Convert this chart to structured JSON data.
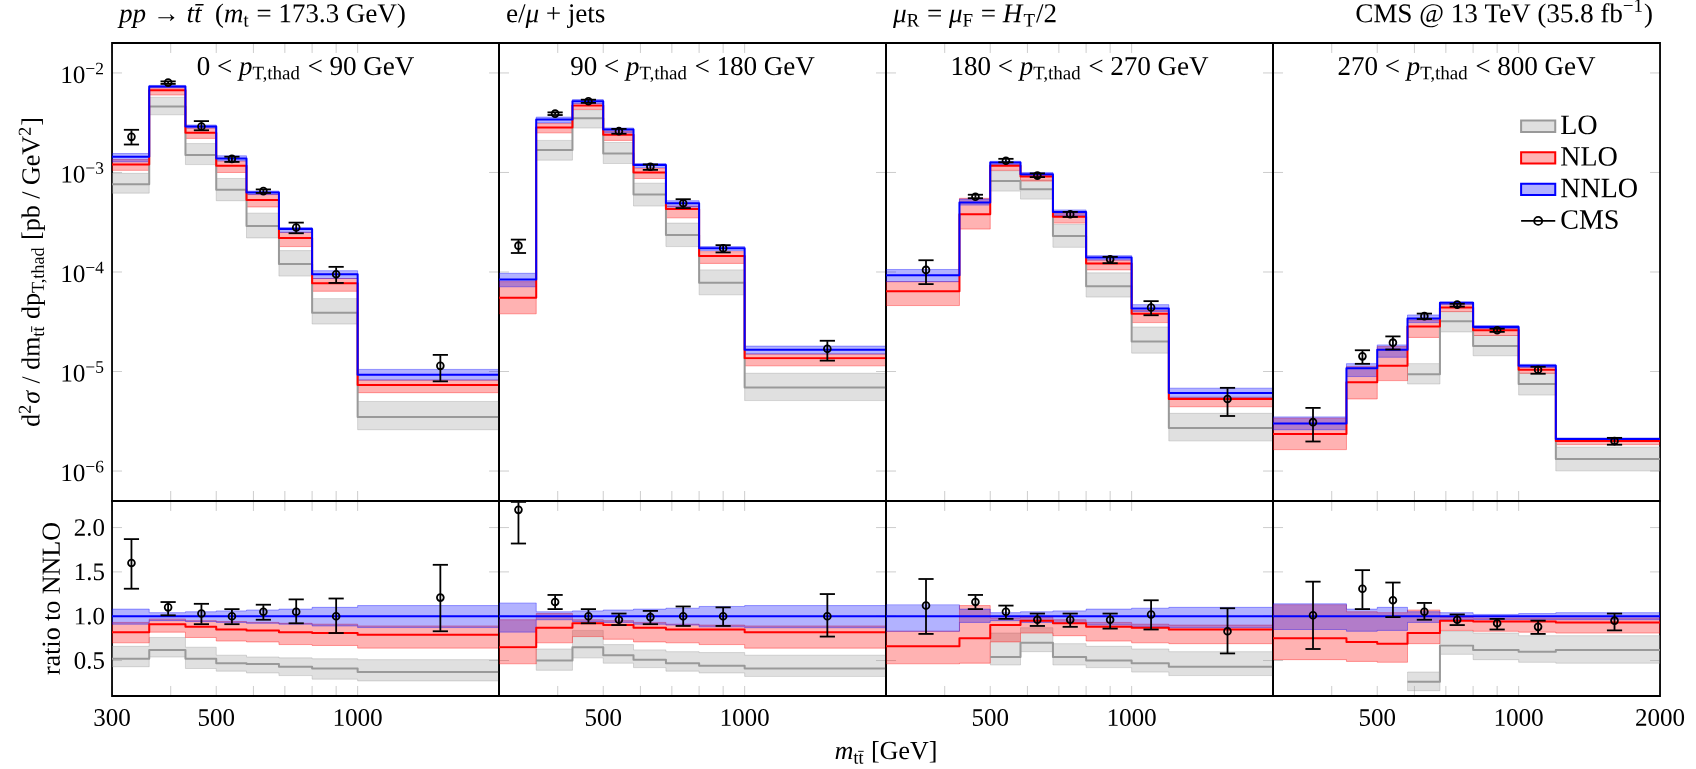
{
  "chart_data": [
    {
      "type": "step",
      "title": "*pp* → *tt̄* (*m*$_{t}$ = 173.3 GeV)",
      "annotations": [
        "0 < *p*$_{T,thad}$ < 90 GeV"
      ],
      "ylabel": "d$^{2}$*σ* / dm$_{tt̄}$ dp$_{T,thad}$  [pb / GeV$^{2}$]",
      "log": "xy",
      "x": [
        300,
        360,
        430,
        500,
        580,
        680,
        800,
        1000,
        2000
      ],
      "xlim": [
        300,
        2000
      ],
      "ylim": [
        5e-07,
        0.02
      ],
      "xticks": [
        {
          "value": 300,
          "label": null
        },
        {
          "value": 400,
          "label": null
        },
        {
          "value": 500,
          "label": null
        },
        {
          "value": 600,
          "label": null
        },
        {
          "value": 700,
          "label": null
        },
        {
          "value": 800,
          "label": null
        },
        {
          "value": 900,
          "label": null
        },
        {
          "value": 1000,
          "label": null
        }
      ],
      "yticks": [
        {
          "value": 0.01,
          "label": "10$^{−2}$"
        },
        {
          "value": 0.001,
          "label": "10$^{−3}$"
        },
        {
          "value": 0.0001,
          "label": "10$^{−4}$"
        },
        {
          "value": 1e-05,
          "label": "10$^{−5}$"
        },
        {
          "value": 1e-06,
          "label": "10$^{−6}$"
        }
      ],
      "tick_labels": "y",
      "series": [
        {
          "color": "#999999",
          "values": [
            0.00076,
            0.0046,
            0.0015,
            0.00067,
            0.00029,
            0.00012,
            3.9e-05,
            3.5e-06,
            3.5e-06
          ],
          "lower": [
            0.00062,
            0.0038,
            0.0012,
            0.00052,
            0.00022,
            9.1e-05,
            3e-05,
            2.6e-06,
            2.6e-06
          ],
          "upper": [
            0.00098,
            0.0057,
            0.00195,
            0.00087,
            0.00039,
            0.000164,
            5.4e-05,
            5e-06,
            5e-06
          ]
        },
        {
          "color": "#ff0000",
          "values": [
            0.0012,
            0.0067,
            0.0025,
            0.00117,
            0.00053,
            0.00022,
            7.7e-05,
            7.3e-06,
            7.3e-06
          ],
          "lower": [
            0.00105,
            0.006,
            0.0022,
            0.001,
            0.00045,
            0.00018,
            6.4e-05,
            6.1e-06,
            6.1e-06
          ],
          "upper": [
            0.00135,
            0.0071,
            0.0028,
            0.0013,
            0.0006,
            0.00025,
            8.6e-05,
            8.2e-06,
            8.2e-06
          ]
        },
        {
          "color": "#0000ff",
          "values": [
            0.00144,
            0.0073,
            0.0029,
            0.00138,
            0.00063,
            0.00027,
            9.5e-05,
            9.3e-06,
            9.3e-06
          ],
          "lower": [
            0.00128,
            0.0071,
            0.0028,
            0.00131,
            0.0006,
            0.00025,
            8.6e-05,
            8.2e-06,
            8.2e-06
          ],
          "upper": [
            0.00155,
            0.0075,
            0.003,
            0.00147,
            0.00065,
            0.00028,
            0.000103,
            1.05e-05,
            1.05e-05
          ]
        },
        {
          "type": "scatter",
          "marker": "circle",
          "color": "#000000",
          "x": [
            330,
            395,
            465,
            540,
            630,
            740,
            900,
            1500
          ],
          "values": [
            0.00228,
            0.008,
            0.0029,
            0.00137,
            0.00065,
            0.00028,
            9.5e-05,
            1.14e-05
          ],
          "errors": [
            [
              0.00187,
              0.00274
            ],
            [
              0.0076,
              0.0084
            ],
            [
              0.0026,
              0.00335
            ],
            [
              0.00125,
              0.00147
            ],
            [
              0.00061,
              0.00069
            ],
            [
              0.00024,
              0.00032
            ],
            [
              7.6e-05,
              0.000115
            ],
            [
              7.8e-06,
              1.5e-05
            ]
          ]
        }
      ]
    },
    {
      "type": "step",
      "title": "e/*μ* + jets",
      "annotations": [
        "90 < *p*$_{T,thad}$ < 180 GeV"
      ],
      "log": "xy",
      "x": [
        300,
        360,
        430,
        500,
        580,
        680,
        800,
        1000,
        2000
      ],
      "xlim": [
        300,
        2000
      ],
      "ylim": [
        5e-07,
        0.02
      ],
      "xticks": [
        {
          "value": 400,
          "label": null
        },
        {
          "value": 500,
          "label": null
        },
        {
          "value": 600,
          "label": null
        },
        {
          "value": 700,
          "label": null
        },
        {
          "value": 800,
          "label": null
        },
        {
          "value": 900,
          "label": null
        },
        {
          "value": 1000,
          "label": null
        }
      ],
      "yticks": [
        {
          "value": 0.01,
          "label": null
        },
        {
          "value": 0.001,
          "label": null
        },
        {
          "value": 0.0001,
          "label": null
        },
        {
          "value": 1e-05,
          "label": null
        },
        {
          "value": 1e-06,
          "label": null
        }
      ],
      "tick_labels": false,
      "series": [
        {
          "color": "#999999",
          "values": [
            null,
            0.00168,
            0.0035,
            0.00155,
            0.0006,
            0.000235,
            7.8e-05,
            6.9e-06,
            6.9e-06
          ],
          "lower": [
            null,
            0.00133,
            0.0028,
            0.00123,
            0.00046,
            0.00018,
            5.9e-05,
            5.1e-06,
            5.1e-06
          ],
          "upper": [
            null,
            0.0021,
            0.0042,
            0.002,
            0.00078,
            0.00031,
            0.000105,
            9.6e-06,
            9.6e-06
          ]
        },
        {
          "color": "#ff0000",
          "values": [
            5.5e-05,
            0.00283,
            0.0047,
            0.0024,
            0.001,
            0.00043,
            0.000145,
            1.36e-05,
            1.36e-05
          ],
          "lower": [
            3.8e-05,
            0.0025,
            0.0043,
            0.0021,
            0.00087,
            0.00035,
            0.000122,
            1.14e-05,
            1.14e-05
          ],
          "upper": [
            8e-05,
            0.0031,
            0.0049,
            0.0026,
            0.0011,
            0.00046,
            0.00016,
            1.5e-05,
            1.5e-05
          ]
        },
        {
          "color": "#0000ff",
          "values": [
            8.4e-05,
            0.0034,
            0.0052,
            0.0027,
            0.00119,
            0.00049,
            0.000173,
            1.65e-05,
            1.65e-05
          ],
          "lower": [
            7.1e-05,
            0.00315,
            0.0049,
            0.0025,
            0.00112,
            0.00045,
            0.000164,
            1.5e-05,
            1.5e-05
          ],
          "upper": [
            9.7e-05,
            0.0036,
            0.0054,
            0.0028,
            0.00123,
            0.00052,
            0.00018,
            1.8e-05,
            1.8e-05
          ]
        },
        {
          "type": "scatter",
          "marker": "circle",
          "color": "#000000",
          "x": [
            330,
            395,
            465,
            540,
            630,
            740,
            900,
            1500
          ],
          "values": [
            0.000184,
            0.0039,
            0.0052,
            0.0026,
            0.00114,
            0.00049,
            0.000173,
            1.69e-05
          ],
          "errors": [
            [
              0.000152,
              0.000216
            ],
            [
              0.0037,
              0.0041
            ],
            [
              0.0049,
              0.0055
            ],
            [
              0.0024,
              0.0028
            ],
            [
              0.00104,
              0.00123
            ],
            [
              0.00043,
              0.00055
            ],
            [
              0.000154,
              0.00019
            ],
            [
              1.26e-05,
              2.08e-05
            ]
          ]
        }
      ]
    },
    {
      "type": "step",
      "title": "*μ*$_{R}$ = *μ*$_{F}$ = *H*$_{T}$/2",
      "annotations": [
        "180 < *p*$_{T,thad}$ < 270 GeV"
      ],
      "log": "xy",
      "x": [
        300,
        430,
        500,
        580,
        680,
        800,
        1000,
        1200,
        2000
      ],
      "xlim": [
        300,
        2000
      ],
      "ylim": [
        5e-07,
        0.02
      ],
      "xticks": [
        {
          "value": 400,
          "label": null
        },
        {
          "value": 500,
          "label": null
        },
        {
          "value": 600,
          "label": null
        },
        {
          "value": 700,
          "label": null
        },
        {
          "value": 800,
          "label": null
        },
        {
          "value": 900,
          "label": null
        },
        {
          "value": 1000,
          "label": null
        }
      ],
      "yticks": [
        {
          "value": 0.01,
          "label": null
        },
        {
          "value": 0.001,
          "label": null
        },
        {
          "value": 0.0001,
          "label": null
        },
        {
          "value": 1e-05,
          "label": null
        },
        {
          "value": 1e-06,
          "label": null
        }
      ],
      "tick_labels": false,
      "series": [
        {
          "color": "#999999",
          "values": [
            null,
            null,
            0.00082,
            0.00068,
            0.00023,
            7.2e-05,
            2e-05,
            2.7e-06,
            2.7e-06
          ],
          "lower": [
            null,
            null,
            0.00065,
            0.00054,
            0.000177,
            5.6e-05,
            1.53e-05,
            2e-06,
            2e-06
          ],
          "upper": [
            null,
            null,
            0.00104,
            0.00084,
            0.0003,
            9.8e-05,
            2.8e-05,
            3.8e-06,
            3.8e-06
          ]
        },
        {
          "color": "#ff0000",
          "values": [
            6.4e-05,
            0.00038,
            0.00117,
            0.00091,
            0.00036,
            0.000122,
            3.8e-05,
            5.3e-06,
            5.3e-06
          ],
          "lower": [
            4.6e-05,
            0.00027,
            0.00105,
            0.00082,
            0.00031,
            0.000105,
            3.1e-05,
            4.4e-06,
            4.4e-06
          ],
          "upper": [
            8e-05,
            0.00055,
            0.00121,
            0.00094,
            0.00039,
            0.000132,
            4.1e-05,
            5.5e-06,
            5.5e-06
          ]
        },
        {
          "color": "#0000ff",
          "values": [
            9.3e-05,
            0.0005,
            0.00126,
            0.00096,
            0.0004,
            0.00014,
            4.3e-05,
            6.1e-06,
            6.1e-06
          ],
          "lower": [
            8e-05,
            0.00047,
            0.0012,
            0.00092,
            0.00037,
            0.000132,
            4e-05,
            5.5e-06,
            5.5e-06
          ],
          "upper": [
            0.000106,
            0.00054,
            0.0013,
            0.001,
            0.00042,
            0.000146,
            4.7e-05,
            6.8e-06,
            6.8e-06
          ]
        },
        {
          "type": "scatter",
          "marker": "circle",
          "color": "#000000",
          "x": [
            365,
            465,
            540,
            630,
            740,
            900,
            1100,
            1600
          ],
          "values": [
            0.000105,
            0.00057,
            0.00131,
            0.00093,
            0.00038,
            0.000134,
            4.4e-05,
            5.3e-06
          ],
          "errors": [
            [
              7.4e-05,
              0.000134
            ],
            [
              0.00054,
              0.00061
            ],
            [
              0.00124,
              0.0014
            ],
            [
              0.00088,
              0.001
            ],
            [
              0.00035,
              0.00041
            ],
            [
              0.00012,
              0.000145
            ],
            [
              3.6e-05,
              5.2e-05
            ],
            [
              3.5e-06,
              7e-06
            ]
          ]
        }
      ]
    },
    {
      "type": "step",
      "title": "CMS @ 13 TeV (35.8 fb$^{−1}$)",
      "annotations": [
        "270 < *p*$_{T,thad}$ < 800 GeV"
      ],
      "log": "xy",
      "x": [
        300,
        430,
        500,
        580,
        680,
        800,
        1000,
        1200,
        2000
      ],
      "xlim": [
        300,
        2000
      ],
      "ylim": [
        5e-07,
        0.02
      ],
      "legend": "top right",
      "xticks": [
        {
          "value": 400,
          "label": null
        },
        {
          "value": 500,
          "label": null
        },
        {
          "value": 600,
          "label": null
        },
        {
          "value": 700,
          "label": null
        },
        {
          "value": 800,
          "label": null
        },
        {
          "value": 900,
          "label": null
        },
        {
          "value": 1000,
          "label": null
        }
      ],
      "yticks": [
        {
          "value": 0.01,
          "label": null
        },
        {
          "value": 0.001,
          "label": null
        },
        {
          "value": 0.0001,
          "label": null
        },
        {
          "value": 1e-05,
          "label": null
        },
        {
          "value": 1e-06,
          "label": null
        }
      ],
      "tick_labels": false,
      "series": [
        {
          "name": "LO",
          "color": "#999999",
          "values": [
            null,
            null,
            null,
            9.4e-06,
            3.2e-05,
            1.8e-05,
            7.5e-06,
            1.32e-06,
            1.32e-06
          ],
          "lower": [
            null,
            null,
            null,
            7.5e-06,
            2.5e-05,
            1.44e-05,
            5.8e-06,
            1e-06,
            1e-06
          ],
          "upper": [
            null,
            null,
            null,
            1.2e-05,
            4e-05,
            2.3e-05,
            9.6e-06,
            1.74e-06,
            1.74e-06
          ]
        },
        {
          "name": "NLO",
          "color": "#ff0000",
          "values": [
            2.35e-06,
            7.8e-06,
            1.14e-05,
            2.83e-05,
            4.4e-05,
            2.6e-05,
            1.04e-05,
            2e-06,
            2e-06
          ],
          "lower": [
            1.64e-06,
            5.3e-06,
            8.1e-06,
            2.2e-05,
            4e-05,
            2.3e-05,
            9.6e-06,
            1.84e-06,
            1.84e-06
          ],
          "upper": [
            3.4e-06,
            1.12e-05,
            1.78e-05,
            3.3e-05,
            4.8e-05,
            2.7e-05,
            1.1e-05,
            2.1e-06,
            2.1e-06
          ]
        },
        {
          "name": "NNLO",
          "color": "#0000ff",
          "values": [
            3e-06,
            1.08e-05,
            1.65e-05,
            3.4e-05,
            4.9e-05,
            2.8e-05,
            1.14e-05,
            2.1e-06,
            2.1e-06
          ],
          "lower": [
            2.6e-06,
            8.9e-06,
            1.39e-05,
            3.1e-05,
            4.7e-05,
            2.7e-05,
            1.1e-05,
            2e-06,
            2e-06
          ],
          "upper": [
            3.5e-06,
            1.2e-05,
            1.85e-05,
            3.7e-05,
            5e-05,
            2.9e-05,
            1.18e-05,
            2.15e-06,
            2.15e-06
          ]
        },
        {
          "name": "CMS",
          "type": "scatter",
          "marker": "circle",
          "color": "#000000",
          "x": [
            365,
            465,
            540,
            630,
            740,
            900,
            1100,
            1600
          ],
          "values": [
            3.1e-06,
            1.42e-05,
            1.95e-05,
            3.6e-05,
            4.7e-05,
            2.6e-05,
            1.04e-05,
            2e-06
          ],
          "errors": [
            [
              1.94e-06,
              4.4e-06
            ],
            [
              1.17e-05,
              1.67e-05
            ],
            [
              1.63e-05,
              2.3e-05
            ],
            [
              3.3e-05,
              3.9e-05
            ],
            [
              4.4e-05,
              4.9e-05
            ],
            [
              2.45e-05,
              2.75e-05
            ],
            [
              9.3e-06,
              1.14e-05
            ],
            [
              1.8e-06,
              2.2e-06
            ]
          ]
        }
      ]
    },
    {
      "type": "step",
      "ylabel": "ratio to NNLO",
      "log": "x",
      "x": [
        300,
        360,
        430,
        500,
        580,
        680,
        800,
        1000,
        2000
      ],
      "xlim": [
        300,
        2000
      ],
      "ylim": [
        0.1,
        2.3
      ],
      "xticks": [
        300,
        {
          "value": 400,
          "label": null
        },
        500,
        {
          "value": 600,
          "label": null
        },
        {
          "value": 700,
          "label": null
        },
        {
          "value": 800,
          "label": null
        },
        {
          "value": 900,
          "label": null
        },
        1000
      ],
      "yticks": [
        0.5,
        {
          "value": 1.0,
          "label": "1.0"
        },
        1.5,
        {
          "value": 2.0,
          "label": "2.0"
        }
      ],
      "series": [
        {
          "color": "#999999",
          "values": [
            0.52,
            0.62,
            0.52,
            0.47,
            0.46,
            0.43,
            0.41,
            0.37,
            0.37
          ],
          "lower": [
            0.43,
            0.54,
            0.41,
            0.38,
            0.36,
            0.33,
            0.29,
            0.27,
            0.27
          ],
          "upper": [
            0.66,
            0.76,
            0.65,
            0.56,
            0.54,
            0.53,
            0.52,
            0.51,
            0.51
          ]
        },
        {
          "color": "#ff0000",
          "values": [
            0.82,
            0.91,
            0.88,
            0.85,
            0.84,
            0.82,
            0.81,
            0.79,
            0.79
          ],
          "lower": [
            0.7,
            0.82,
            0.76,
            0.72,
            0.71,
            0.68,
            0.67,
            0.64,
            0.64
          ],
          "upper": [
            0.93,
            0.97,
            0.95,
            0.94,
            0.93,
            0.92,
            0.91,
            0.89,
            0.89
          ]
        },
        {
          "color": "#0000ff",
          "values": [
            1.0,
            1.0,
            1.0,
            1.0,
            1.0,
            1.0,
            1.0,
            1.0,
            1.0
          ],
          "lower": [
            0.91,
            0.95,
            0.94,
            0.93,
            0.92,
            0.91,
            0.89,
            0.87,
            0.87
          ],
          "upper": [
            1.08,
            1.04,
            1.05,
            1.06,
            1.07,
            1.08,
            1.1,
            1.12,
            1.12
          ]
        },
        {
          "type": "scatter",
          "marker": "circle",
          "color": "#000000",
          "x": [
            330,
            395,
            465,
            540,
            630,
            740,
            900,
            1500
          ],
          "values": [
            1.6,
            1.1,
            1.03,
            1.0,
            1.05,
            1.05,
            1.0,
            1.21
          ],
          "errors": [
            [
              1.3,
              1.88
            ],
            [
              1.0,
              1.17
            ],
            [
              0.9,
              1.15
            ],
            [
              0.9,
              1.09
            ],
            [
              0.95,
              1.14
            ],
            [
              0.91,
              1.2
            ],
            [
              0.8,
              1.21
            ],
            [
              0.82,
              1.59
            ]
          ]
        }
      ]
    },
    {
      "type": "step",
      "xlabel": "*m*$_{tt̄}$ [GeV]",
      "log": "x",
      "x": [
        300,
        360,
        430,
        500,
        580,
        680,
        800,
        1000,
        2000
      ],
      "xlim": [
        300,
        2000
      ],
      "ylim": [
        0.1,
        2.3
      ],
      "xticks": [
        {
          "value": 400,
          "label": null
        },
        500,
        {
          "value": 600,
          "label": null
        },
        {
          "value": 700,
          "label": null
        },
        {
          "value": 800,
          "label": null
        },
        {
          "value": 900,
          "label": null
        },
        1000
      ],
      "yticks": [
        {
          "value": 0.5,
          "label": null
        },
        {
          "value": 1.0,
          "label": null
        },
        {
          "value": 1.5,
          "label": null
        },
        {
          "value": 2.0,
          "label": null
        }
      ],
      "tick_labels": "x",
      "series": [
        {
          "color": "#999999",
          "values": [
            null,
            0.5,
            0.65,
            0.56,
            0.51,
            0.47,
            0.44,
            0.41,
            0.41
          ],
          "lower": [
            null,
            0.39,
            0.53,
            0.47,
            0.42,
            0.38,
            0.36,
            0.32,
            0.32
          ],
          "upper": [
            null,
            0.63,
            0.84,
            0.68,
            0.62,
            0.6,
            0.59,
            0.56,
            0.56
          ]
        },
        {
          "color": "#ff0000",
          "values": [
            0.65,
            0.87,
            0.92,
            0.9,
            0.87,
            0.85,
            0.85,
            0.82,
            0.82
          ],
          "lower": [
            0.46,
            0.7,
            0.77,
            0.74,
            0.71,
            0.7,
            0.68,
            0.64,
            0.64
          ],
          "upper": [
            0.96,
            1.03,
            0.96,
            0.95,
            0.93,
            0.91,
            0.9,
            0.89,
            0.89
          ]
        },
        {
          "color": "#0000ff",
          "values": [
            1.0,
            1.0,
            1.0,
            1.0,
            1.0,
            1.0,
            1.0,
            1.0,
            1.0
          ],
          "lower": [
            0.82,
            0.96,
            0.94,
            0.93,
            0.91,
            0.9,
            0.88,
            0.87,
            0.87
          ],
          "upper": [
            1.15,
            1.05,
            1.06,
            1.07,
            1.08,
            1.09,
            1.11,
            1.12,
            1.12
          ]
        },
        {
          "type": "scatter",
          "marker": "circle",
          "color": "#000000",
          "x": [
            330,
            395,
            465,
            540,
            630,
            740,
            900,
            1500
          ],
          "values": [
            2.2,
            1.16,
            1.0,
            0.96,
            0.99,
            1.0,
            1.0,
            1.0
          ],
          "errors": [
            [
              1.81,
              2.3
            ],
            [
              1.07,
              1.25
            ],
            [
              0.91,
              1.09
            ],
            [
              0.89,
              1.04
            ],
            [
              0.9,
              1.07
            ],
            [
              0.88,
              1.12
            ],
            [
              0.88,
              1.11
            ],
            [
              0.76,
              1.26
            ]
          ]
        }
      ]
    },
    {
      "type": "step",
      "log": "x",
      "x": [
        300,
        430,
        500,
        580,
        680,
        800,
        1000,
        1200,
        2000
      ],
      "xlim": [
        300,
        2000
      ],
      "ylim": [
        0.1,
        2.3
      ],
      "xticks": [
        {
          "value": 400,
          "label": null
        },
        500,
        {
          "value": 600,
          "label": null
        },
        {
          "value": 700,
          "label": null
        },
        {
          "value": 800,
          "label": null
        },
        {
          "value": 900,
          "label": null
        },
        1000
      ],
      "yticks": [
        {
          "value": 0.5,
          "label": null
        },
        {
          "value": 1.0,
          "label": null
        },
        {
          "value": 1.5,
          "label": null
        },
        {
          "value": 2.0,
          "label": null
        }
      ],
      "tick_labels": "x",
      "series": [
        {
          "color": "#999999",
          "values": [
            null,
            null,
            0.54,
            0.7,
            0.54,
            0.5,
            0.47,
            0.43,
            0.43
          ],
          "lower": [
            null,
            null,
            0.45,
            0.6,
            0.45,
            0.42,
            0.37,
            0.33,
            0.33
          ],
          "upper": [
            null,
            null,
            0.81,
            0.87,
            0.69,
            0.66,
            0.63,
            0.6,
            0.6
          ]
        },
        {
          "color": "#ff0000",
          "values": [
            0.66,
            0.75,
            0.9,
            0.95,
            0.92,
            0.88,
            0.87,
            0.85,
            0.85
          ],
          "lower": [
            0.46,
            0.47,
            0.71,
            0.81,
            0.78,
            0.72,
            0.7,
            0.69,
            0.69
          ],
          "upper": [
            0.83,
            1.12,
            0.98,
            0.99,
            0.96,
            0.93,
            0.91,
            0.9,
            0.9
          ]
        },
        {
          "color": "#0000ff",
          "values": [
            1.0,
            1.0,
            1.0,
            1.0,
            1.0,
            1.0,
            1.0,
            1.0,
            1.0
          ],
          "lower": [
            0.83,
            0.93,
            0.95,
            0.93,
            0.92,
            0.9,
            0.88,
            0.87,
            0.87
          ],
          "upper": [
            1.13,
            1.08,
            1.04,
            1.05,
            1.06,
            1.08,
            1.09,
            1.1,
            1.1
          ]
        },
        {
          "type": "scatter",
          "marker": "circle",
          "color": "#000000",
          "x": [
            365,
            465,
            540,
            630,
            740,
            900,
            1100,
            1600
          ],
          "values": [
            1.12,
            1.16,
            1.05,
            0.96,
            0.96,
            0.96,
            1.02,
            0.83
          ],
          "errors": [
            [
              0.79,
              1.43
            ],
            [
              1.07,
              1.25
            ],
            [
              0.96,
              1.13
            ],
            [
              0.88,
              1.04
            ],
            [
              0.87,
              1.04
            ],
            [
              0.85,
              1.04
            ],
            [
              0.84,
              1.19
            ],
            [
              0.57,
              1.1
            ]
          ]
        }
      ]
    },
    {
      "type": "step",
      "log": "x",
      "x": [
        300,
        430,
        500,
        580,
        680,
        800,
        1000,
        1200,
        2000
      ],
      "xlim": [
        300,
        2000
      ],
      "ylim": [
        0.1,
        2.3
      ],
      "xticks": [
        {
          "value": 400,
          "label": null
        },
        500,
        {
          "value": 600,
          "label": null
        },
        {
          "value": 700,
          "label": null
        },
        {
          "value": 800,
          "label": null
        },
        {
          "value": 900,
          "label": null
        },
        1000,
        2000
      ],
      "yticks": [
        {
          "value": 0.5,
          "label": null
        },
        {
          "value": 1.0,
          "label": null
        },
        {
          "value": 1.5,
          "label": null
        },
        {
          "value": 2.0,
          "label": null
        }
      ],
      "tick_labels": "x",
      "series": [
        {
          "color": "#999999",
          "values": [
            null,
            null,
            null,
            0.26,
            0.67,
            0.62,
            0.6,
            0.62,
            0.62
          ],
          "lower": [
            null,
            null,
            null,
            0.16,
            0.57,
            0.51,
            0.48,
            0.47,
            0.47
          ],
          "upper": [
            null,
            null,
            null,
            0.37,
            0.83,
            0.81,
            0.78,
            0.78,
            0.78
          ]
        },
        {
          "color": "#ff0000",
          "values": [
            0.75,
            0.71,
            0.69,
            0.81,
            0.95,
            0.94,
            0.94,
            0.93,
            0.93
          ],
          "lower": [
            0.51,
            0.49,
            0.48,
            0.69,
            0.84,
            0.83,
            0.82,
            0.81,
            0.81
          ],
          "upper": [
            1.13,
            1.05,
            1.04,
            1.07,
            0.99,
            0.98,
            0.98,
            0.98,
            0.98
          ]
        },
        {
          "color": "#0000ff",
          "values": [
            1.0,
            1.0,
            1.0,
            1.0,
            1.0,
            1.0,
            1.0,
            1.0,
            1.0
          ],
          "lower": [
            0.85,
            0.83,
            0.84,
            0.93,
            0.96,
            0.96,
            0.96,
            0.96,
            0.96
          ],
          "upper": [
            1.14,
            1.08,
            1.1,
            1.05,
            1.04,
            1.02,
            1.03,
            1.04,
            1.04
          ]
        },
        {
          "type": "scatter",
          "marker": "circle",
          "color": "#000000",
          "x": [
            365,
            465,
            540,
            630,
            740,
            900,
            1100,
            1600
          ],
          "values": [
            1.01,
            1.31,
            1.18,
            1.05,
            0.96,
            0.92,
            0.88,
            0.95
          ],
          "errors": [
            [
              0.62,
              1.4
            ],
            [
              1.07,
              1.53
            ],
            [
              0.98,
              1.39
            ],
            [
              0.95,
              1.16
            ],
            [
              0.89,
              1.03
            ],
            [
              0.84,
              0.98
            ],
            [
              0.79,
              0.96
            ],
            [
              0.83,
              1.04
            ]
          ]
        }
      ]
    }
  ]
}
